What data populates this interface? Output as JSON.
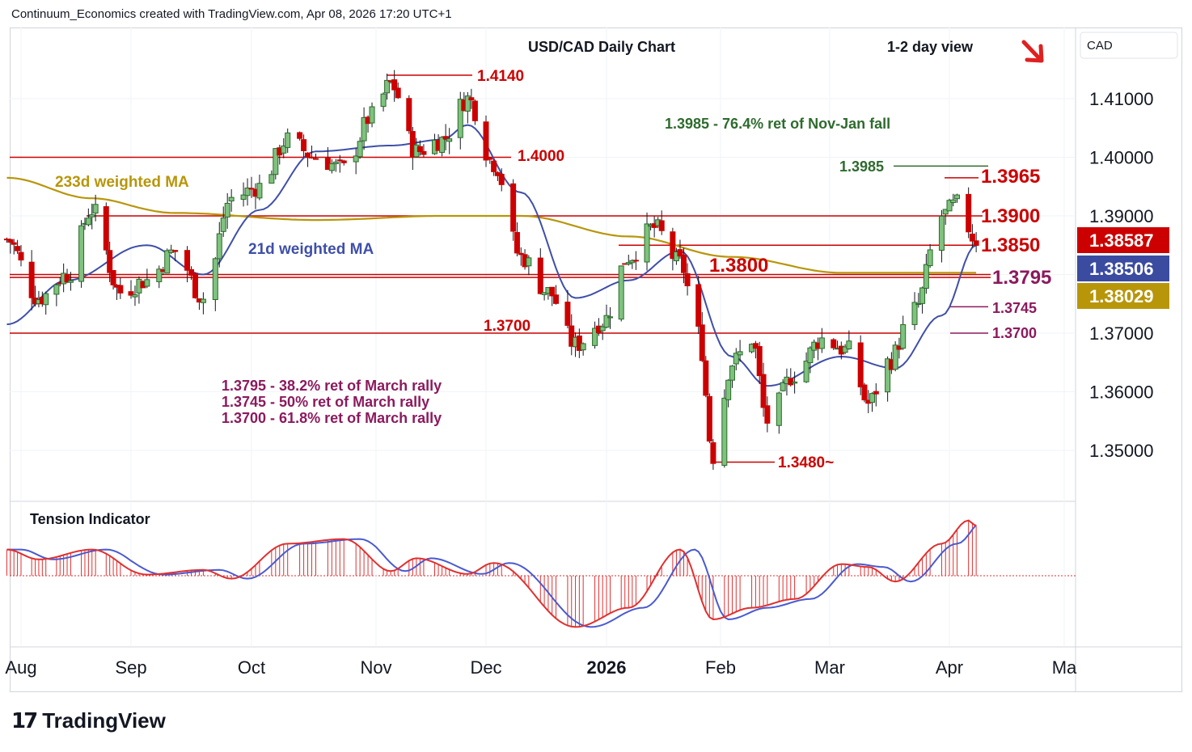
{
  "header": {
    "credit": "Continuum_Economics created with TradingView.com, Apr 08, 2026 17:20 UTC+1"
  },
  "footer": {
    "logo_text": "TradingView",
    "logo_mark": "17"
  },
  "colors": {
    "up": "#ffffff",
    "down": "#cc0000",
    "wick": "#131722",
    "level_line": "#cc0000",
    "ma21": "#3f4fa8",
    "ma233": "#b8960a",
    "green_ann": "#2e6b2e",
    "purple_ann": "#8b1a5e",
    "badge_red": "#cc0000",
    "badge_blue": "#3b4ba0",
    "badge_gold": "#b8960a",
    "tension_red": "#e03030",
    "tension_blue": "#4a5ad0"
  },
  "chart_data": {
    "type": "candlestick",
    "title": "USD/CAD Daily Chart",
    "view_label": "1-2 day view",
    "currency_label": "CAD",
    "y_axis": {
      "ticks": [
        "1.41000",
        "1.40000",
        "1.39000",
        "1.38000",
        "1.37000",
        "1.36000",
        "1.35000"
      ],
      "ylim": [
        1.3415,
        1.4255
      ]
    },
    "x_axis": {
      "ticks": [
        "Aug",
        "Sep",
        "Oct",
        "Nov",
        "Dec",
        "2026",
        "Feb",
        "Mar",
        "Apr",
        "Ma"
      ]
    },
    "price_badges": [
      {
        "value": "1.38587",
        "color": "red"
      },
      {
        "value": "1.38506",
        "color": "blue"
      },
      {
        "value": "1.38029",
        "color": "gold"
      }
    ],
    "levels": [
      {
        "label": "1.4140",
        "value": 1.414
      },
      {
        "label": "1.4000",
        "value": 1.4
      },
      {
        "label": "1.3985",
        "value": 1.3985
      },
      {
        "label": "1.3965",
        "value": 1.3965
      },
      {
        "label": "1.3900",
        "value": 1.39
      },
      {
        "label": "1.3850",
        "value": 1.385
      },
      {
        "label": "1.3800",
        "value": 1.38
      },
      {
        "label": "1.3795",
        "value": 1.3795
      },
      {
        "label": "1.3745",
        "value": 1.3745
      },
      {
        "label": "1.3700",
        "value": 1.37
      },
      {
        "label": "1.3700",
        "value": 1.37
      },
      {
        "label": "1.3480~",
        "value": 1.348
      }
    ],
    "annotations": {
      "green": "1.3985 - 76.4% ret of Nov-Jan fall",
      "purple": [
        "1.3795 - 38.2% ret of March rally",
        "1.3745 - 50% ret of March rally",
        "1.3700 - 61.8% ret of March rally"
      ],
      "ma233_label": "233d weighted MA",
      "ma21_label": "21d weighted MA",
      "tension_label": "Tension Indicator"
    },
    "series_close_anchors": [
      [
        "2025-07-28",
        1.386
      ],
      [
        "2025-08-06",
        1.376
      ],
      [
        "2025-08-14",
        1.38
      ],
      [
        "2025-08-21",
        1.391
      ],
      [
        "2025-08-29",
        1.377
      ],
      [
        "2025-09-05",
        1.379
      ],
      [
        "2025-09-12",
        1.384
      ],
      [
        "2025-09-19",
        1.376
      ],
      [
        "2025-09-26",
        1.393
      ],
      [
        "2025-10-03",
        1.395
      ],
      [
        "2025-10-10",
        1.403
      ],
      [
        "2025-10-17",
        1.4
      ],
      [
        "2025-10-24",
        1.398
      ],
      [
        "2025-10-31",
        1.407
      ],
      [
        "2025-11-05",
        1.4125
      ],
      [
        "2025-11-12",
        1.401
      ],
      [
        "2025-11-19",
        1.403
      ],
      [
        "2025-11-26",
        1.41
      ],
      [
        "2025-12-03",
        1.399
      ],
      [
        "2025-12-10",
        1.383
      ],
      [
        "2025-12-17",
        1.377
      ],
      [
        "2025-12-24",
        1.368
      ],
      [
        "2025-12-31",
        1.372
      ],
      [
        "2026-01-07",
        1.383
      ],
      [
        "2026-01-14",
        1.388
      ],
      [
        "2026-01-21",
        1.382
      ],
      [
        "2026-01-26",
        1.37
      ],
      [
        "2026-01-30",
        1.349
      ],
      [
        "2026-02-04",
        1.365
      ],
      [
        "2026-02-09",
        1.369
      ],
      [
        "2026-02-13",
        1.355
      ],
      [
        "2026-02-20",
        1.363
      ],
      [
        "2026-02-27",
        1.369
      ],
      [
        "2026-03-06",
        1.367
      ],
      [
        "2026-03-11",
        1.358
      ],
      [
        "2026-03-16",
        1.365
      ],
      [
        "2026-03-23",
        1.374
      ],
      [
        "2026-03-30",
        1.39
      ],
      [
        "2026-04-03",
        1.392
      ],
      [
        "2026-04-08",
        1.3859
      ]
    ],
    "ma21_anchors": [
      [
        "2025-07-28",
        1.3715
      ],
      [
        "2025-08-14",
        1.379
      ],
      [
        "2025-09-05",
        1.385
      ],
      [
        "2025-09-19",
        1.38
      ],
      [
        "2025-10-03",
        1.391
      ],
      [
        "2025-10-17",
        1.401
      ],
      [
        "2025-11-05",
        1.402
      ],
      [
        "2025-11-19",
        1.403
      ],
      [
        "2025-11-26",
        1.4055
      ],
      [
        "2025-12-10",
        1.394
      ],
      [
        "2025-12-24",
        1.376
      ],
      [
        "2026-01-07",
        1.379
      ],
      [
        "2026-01-21",
        1.384
      ],
      [
        "2026-02-04",
        1.366
      ],
      [
        "2026-02-13",
        1.361
      ],
      [
        "2026-03-04",
        1.366
      ],
      [
        "2026-03-18",
        1.364
      ],
      [
        "2026-03-30",
        1.373
      ],
      [
        "2026-04-08",
        1.385
      ]
    ],
    "ma233_anchors": [
      [
        "2025-07-28",
        1.3965
      ],
      [
        "2025-08-21",
        1.393
      ],
      [
        "2025-09-12",
        1.3905
      ],
      [
        "2025-10-17",
        1.3893
      ],
      [
        "2025-11-19",
        1.39
      ],
      [
        "2025-12-10",
        1.39
      ],
      [
        "2026-01-07",
        1.3865
      ],
      [
        "2026-02-04",
        1.383
      ],
      [
        "2026-03-04",
        1.3803
      ],
      [
        "2026-04-08",
        1.3803
      ]
    ],
    "tension_anchors": [
      [
        "2025-07-28",
        0.45
      ],
      [
        "2025-08-06",
        0.28
      ],
      [
        "2025-08-21",
        0.45
      ],
      [
        "2025-09-05",
        0.02
      ],
      [
        "2025-09-19",
        0.1
      ],
      [
        "2025-09-26",
        -0.05
      ],
      [
        "2025-10-10",
        0.55
      ],
      [
        "2025-10-24",
        0.63
      ],
      [
        "2025-11-05",
        0.08
      ],
      [
        "2025-11-12",
        0.3
      ],
      [
        "2025-11-26",
        0.03
      ],
      [
        "2025-12-03",
        0.22
      ],
      [
        "2025-12-24",
        -0.88
      ],
      [
        "2026-01-07",
        -0.55
      ],
      [
        "2026-01-21",
        0.45
      ],
      [
        "2026-01-30",
        -0.75
      ],
      [
        "2026-02-09",
        -0.55
      ],
      [
        "2026-02-20",
        -0.4
      ],
      [
        "2026-03-04",
        0.2
      ],
      [
        "2026-03-11",
        0.15
      ],
      [
        "2026-03-18",
        -0.1
      ],
      [
        "2026-03-30",
        0.55
      ],
      [
        "2026-04-06",
        0.95
      ],
      [
        "2026-04-08",
        0.85
      ]
    ]
  }
}
